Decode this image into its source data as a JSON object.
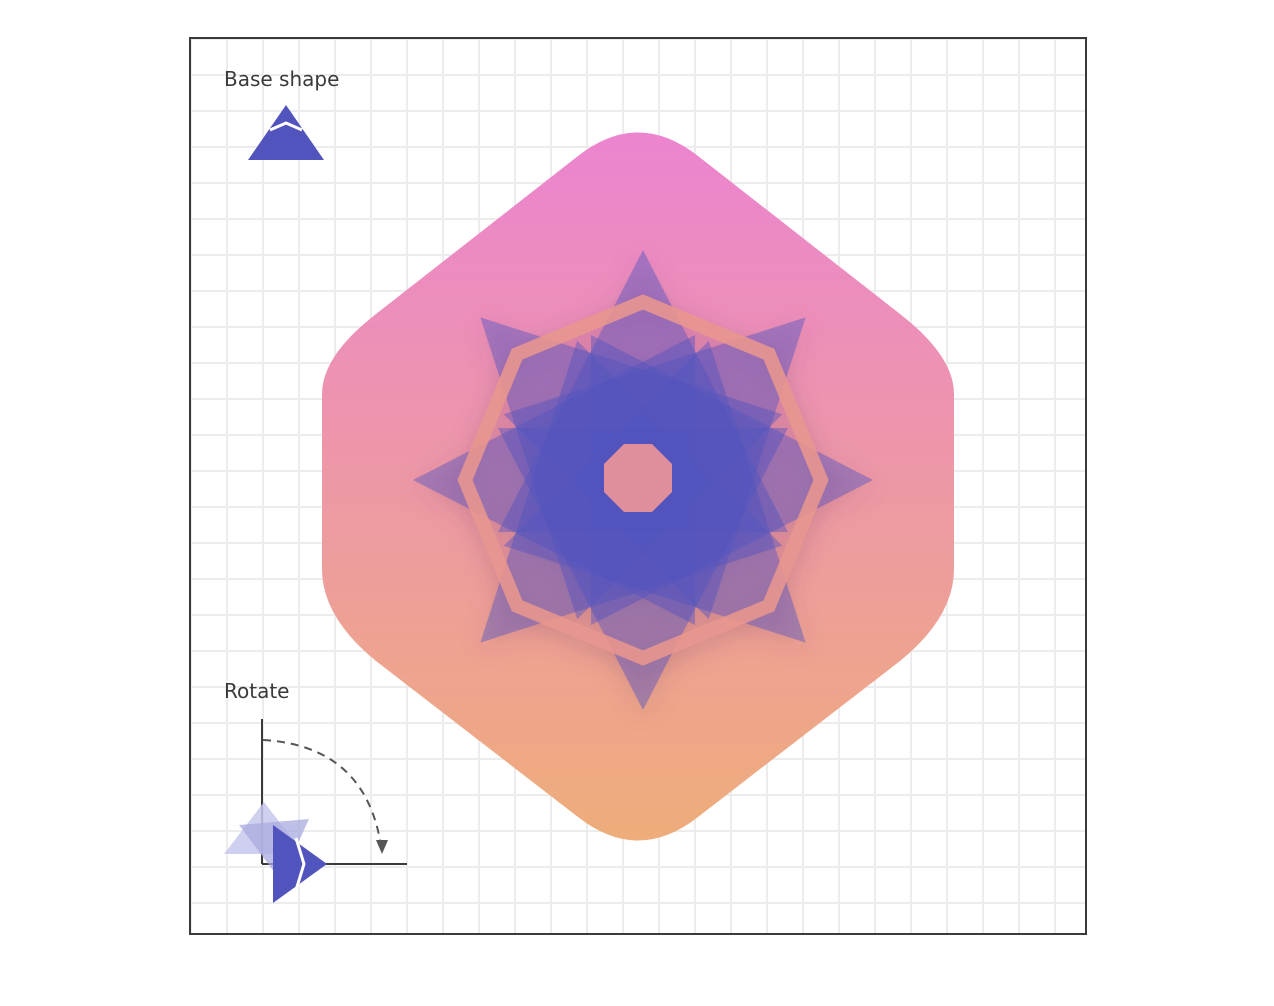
{
  "labels": {
    "base_shape": "Base shape",
    "rotate": "Rotate"
  },
  "colors": {
    "grid_line": "#ececec",
    "frame": "#3a3a3a",
    "shape_fill": "#5254be",
    "gradient_top": "#ec84d0",
    "gradient_bottom": "#eead7a",
    "ring": "#e8968f",
    "center": "#eb9499"
  },
  "icons": {
    "base": "triangle-icon",
    "rotate_arrow": "curved-dashed-arrow-icon"
  }
}
